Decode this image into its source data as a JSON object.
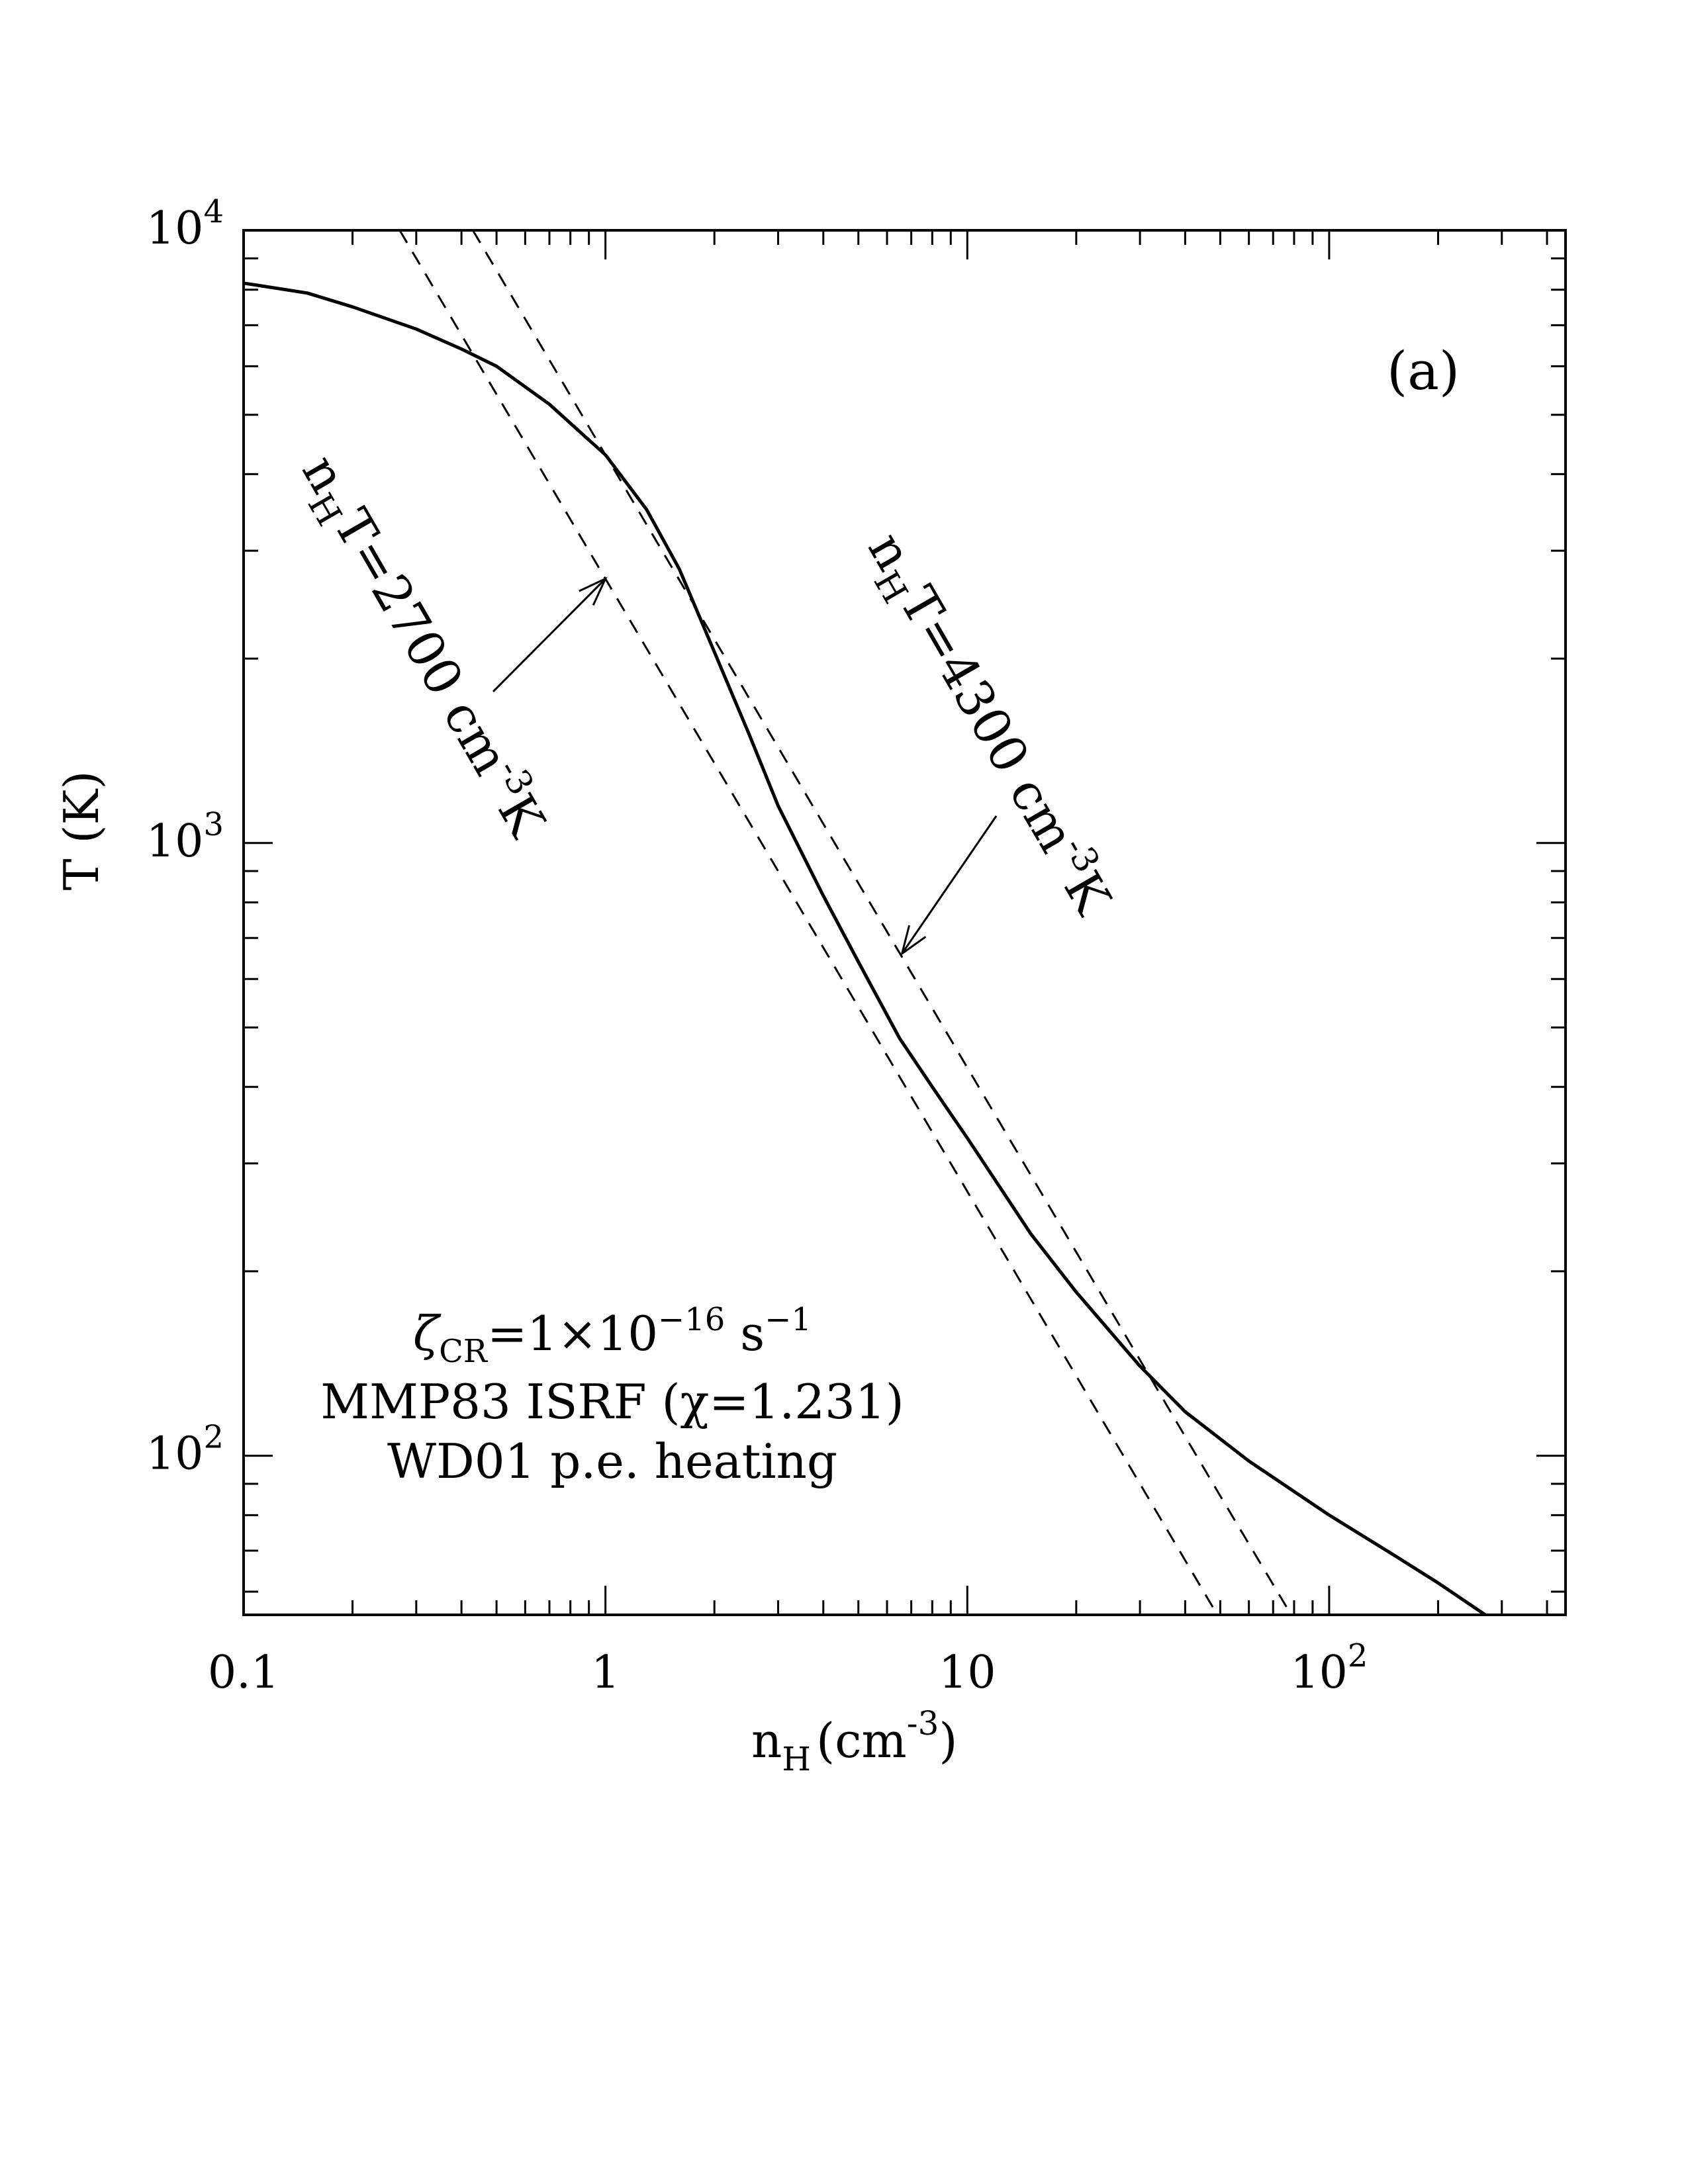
{
  "chart_data": {
    "type": "line",
    "title": "",
    "xlabel_main": "n",
    "xlabel_sub": "H",
    "xlabel_unit": "(cm",
    "xlabel_exp": "-3",
    "xlabel_close": ")",
    "ylabel": "T (K)",
    "xscale": "log",
    "yscale": "log",
    "xlim": [
      0.1,
      450
    ],
    "ylim": [
      55,
      10000
    ],
    "x_ticks": [
      {
        "value": 0.1,
        "label": "0.1"
      },
      {
        "value": 1,
        "label": "1"
      },
      {
        "value": 10,
        "label": "10"
      },
      {
        "value": 100,
        "label": "10",
        "exp": "2"
      }
    ],
    "y_ticks": [
      {
        "value": 100,
        "label": "10",
        "exp": "2"
      },
      {
        "value": 1000,
        "label": "10",
        "exp": "3"
      },
      {
        "value": 10000,
        "label": "10",
        "exp": "4"
      }
    ],
    "panel_label": "(a)",
    "series": [
      {
        "style": "solid",
        "x": [
          0.1,
          0.15,
          0.2,
          0.3,
          0.4,
          0.5,
          0.7,
          1.0,
          1.3,
          1.6,
          2.0,
          2.5,
          3.0,
          4.0,
          5.0,
          6.5,
          8.0,
          10,
          15,
          20,
          30,
          40,
          60,
          100,
          150,
          200,
          270
        ],
        "y": [
          8200,
          7900,
          7500,
          6900,
          6400,
          6000,
          5200,
          4300,
          3500,
          2800,
          2050,
          1500,
          1150,
          820,
          640,
          480,
          400,
          330,
          230,
          185,
          140,
          118,
          98,
          80,
          69,
          62,
          55
        ]
      },
      {
        "style": "dashed",
        "pressure": 2700,
        "x": [
          0.27,
          0.5,
          1,
          2,
          5,
          10,
          20,
          50
        ],
        "y": [
          10000,
          5400,
          2700,
          1350,
          540,
          270,
          135,
          54
        ]
      },
      {
        "style": "dashed",
        "pressure": 4300,
        "x": [
          0.43,
          1,
          2,
          5,
          10,
          20,
          50,
          80
        ],
        "y": [
          10000,
          4300,
          2150,
          860,
          430,
          215,
          86,
          54
        ]
      }
    ],
    "curve_labels": [
      {
        "pre": "n",
        "sub": "H",
        "post": "T=2700 cm",
        "sup": "-3",
        "end": "K",
        "arrow_to": [
          1.0,
          2700
        ]
      },
      {
        "pre": "n",
        "sub": "H",
        "post": "T=4300 cm",
        "sup": "-3",
        "end": "K",
        "arrow_to": [
          6.6,
          660
        ]
      }
    ],
    "annotations": {
      "line1_zeta": "ζ",
      "line1_sub": "CR",
      "line1_eq": "=1×10",
      "line1_exp": "−16",
      "line1_unit": " s",
      "line1_unit_exp": "−1",
      "line2": "MMP83 ISRF (χ=1.231)",
      "line3": "WD01 p.e. heating"
    }
  }
}
